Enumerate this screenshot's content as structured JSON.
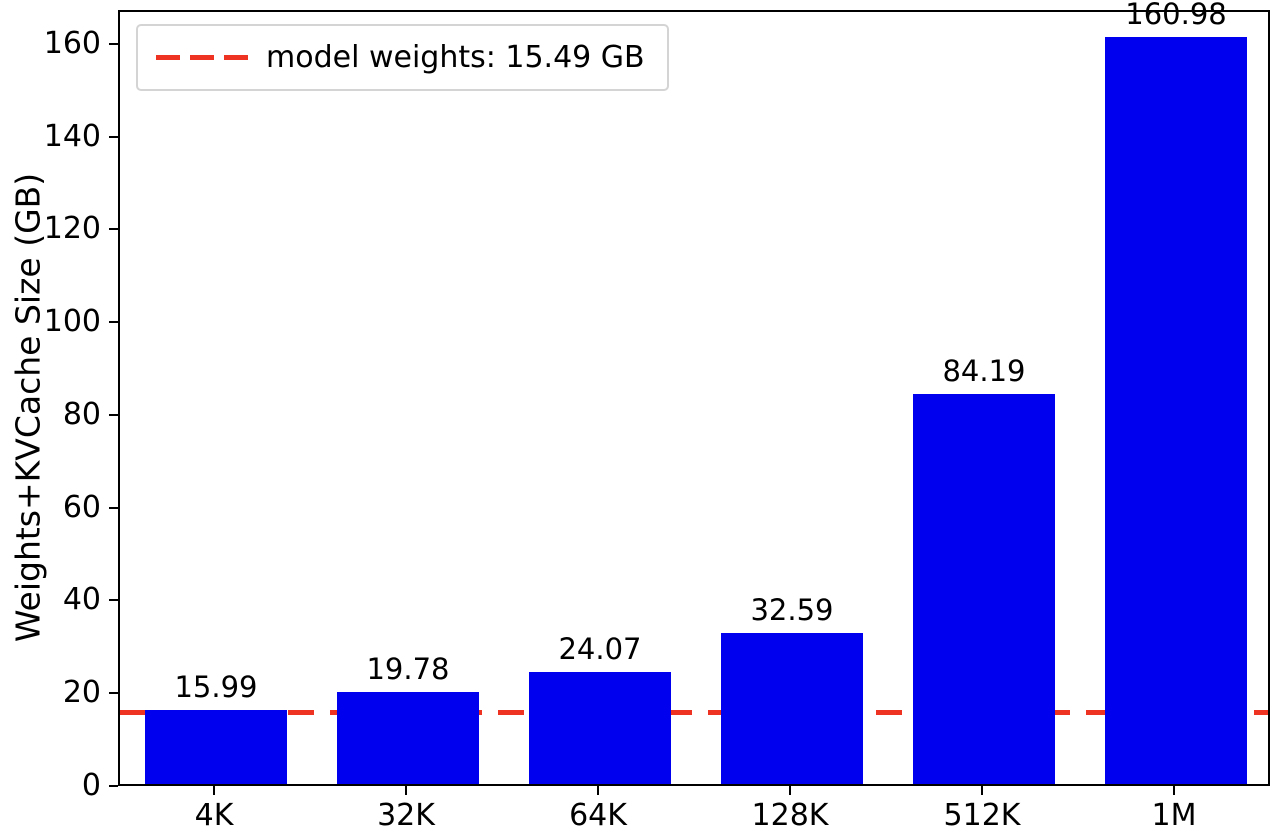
{
  "chart_data": {
    "type": "bar",
    "title": "",
    "xlabel": "",
    "ylabel": "Weights+KVCache Size (GB)",
    "categories": [
      "4K",
      "32K",
      "64K",
      "128K",
      "512K",
      "1M"
    ],
    "values": [
      15.99,
      19.78,
      24.07,
      32.59,
      84.19,
      160.98
    ],
    "bar_labels": [
      "15.99",
      "19.78",
      "24.07",
      "32.59",
      "84.19",
      "160.98"
    ],
    "ylim": [
      0,
      167.3
    ],
    "yticks": [
      0,
      20,
      40,
      60,
      80,
      100,
      120,
      140,
      160
    ],
    "grid": false,
    "legend_position": "upper left",
    "bar_color": "#0000ee",
    "threshold": {
      "value": 15.49,
      "label": "model weights: 15.49 GB",
      "color": "#ee3322",
      "style": "dashed"
    }
  }
}
